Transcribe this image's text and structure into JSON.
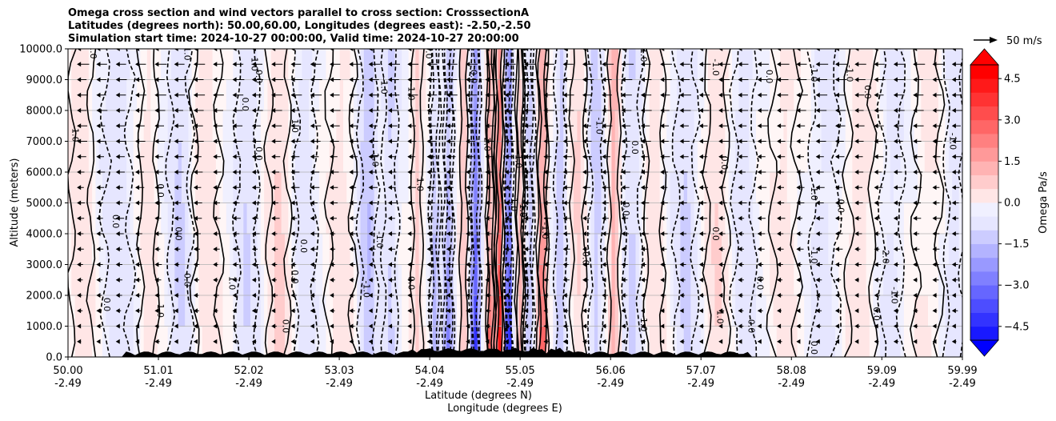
{
  "title_lines": [
    "Omega cross section and wind vectors parallel to cross section: CrosssectionA",
    "Latitudes (degrees north): 50.00,60.00, Longitudes (degrees east): -2.50,-2.50",
    "Simulation start time: 2024-10-27 00:00:00, Valid time: 2024-10-27 20:00:00"
  ],
  "chart_data": {
    "type": "heatmap",
    "title": "Omega cross section and wind vectors parallel to cross section: CrosssectionA",
    "xlabel_lines": [
      "Latitude (degrees N)",
      "Longitude (degrees E)"
    ],
    "ylabel": "Altitude (meters)",
    "xlim": [
      50.0,
      59.99
    ],
    "ylim": [
      0,
      10000
    ],
    "grid": "horizontal",
    "x_ticks": [
      {
        "lat": "50.00",
        "lon": "-2.49",
        "value": 50.0
      },
      {
        "lat": "51.01",
        "lon": "-2.49",
        "value": 51.01
      },
      {
        "lat": "52.02",
        "lon": "-2.49",
        "value": 52.02
      },
      {
        "lat": "53.03",
        "lon": "-2.49",
        "value": 53.03
      },
      {
        "lat": "54.04",
        "lon": "-2.49",
        "value": 54.04
      },
      {
        "lat": "55.05",
        "lon": "-2.49",
        "value": 55.05
      },
      {
        "lat": "56.06",
        "lon": "-2.49",
        "value": 56.06
      },
      {
        "lat": "57.07",
        "lon": "-2.49",
        "value": 57.07
      },
      {
        "lat": "58.08",
        "lon": "-2.49",
        "value": 58.08
      },
      {
        "lat": "59.09",
        "lon": "-2.49",
        "value": 59.09
      },
      {
        "lat": "59.99",
        "lon": "-2.49",
        "value": 59.99
      }
    ],
    "y_ticks": [
      {
        "label": "0.0",
        "value": 0
      },
      {
        "label": "1000.0",
        "value": 1000
      },
      {
        "label": "2000.0",
        "value": 2000
      },
      {
        "label": "3000.0",
        "value": 3000
      },
      {
        "label": "4000.0",
        "value": 4000
      },
      {
        "label": "5000.0",
        "value": 5000
      },
      {
        "label": "6000.0",
        "value": 6000
      },
      {
        "label": "7000.0",
        "value": 7000
      },
      {
        "label": "8000.0",
        "value": 8000
      },
      {
        "label": "9000.0",
        "value": 9000
      },
      {
        "label": "10000.0",
        "value": 10000
      }
    ],
    "colorbar": {
      "label": "Omega Pa/s",
      "min": -5.0,
      "max": 5.0,
      "step": 0.5,
      "extend": "both",
      "ticks": [
        {
          "label": "4.5",
          "value": 4.5
        },
        {
          "label": "3.0",
          "value": 3.0
        },
        {
          "label": "1.5",
          "value": 1.5
        },
        {
          "label": "0.0",
          "value": 0.0
        },
        {
          "label": "−1.5",
          "value": -1.5
        },
        {
          "label": "−3.0",
          "value": -3.0
        },
        {
          "label": "−4.5",
          "value": -4.5
        }
      ]
    },
    "vector_key": {
      "label": "50 m/s",
      "speed": 50
    },
    "features": [
      {
        "lat": 50.15,
        "omega": 0.6,
        "width": 0.12
      },
      {
        "lat": 50.55,
        "omega": -0.6,
        "width": 0.15
      },
      {
        "lat": 50.9,
        "omega": 0.4,
        "width": 0.1
      },
      {
        "lat": 51.25,
        "omega": -0.8,
        "width": 0.12
      },
      {
        "lat": 51.55,
        "omega": 0.5,
        "width": 0.15
      },
      {
        "lat": 52.0,
        "omega": -0.7,
        "width": 0.12
      },
      {
        "lat": 52.35,
        "omega": 0.8,
        "width": 0.12
      },
      {
        "lat": 52.65,
        "omega": -0.5,
        "width": 0.12
      },
      {
        "lat": 53.05,
        "omega": 0.4,
        "width": 0.15
      },
      {
        "lat": 53.35,
        "omega": -1.2,
        "width": 0.1
      },
      {
        "lat": 53.6,
        "omega": -0.8,
        "width": 0.08
      },
      {
        "lat": 53.9,
        "omega": 0.9,
        "width": 0.06
      },
      {
        "lat": 54.1,
        "omega": -1.8,
        "width": 0.05
      },
      {
        "lat": 54.25,
        "omega": -2.6,
        "width": 0.05
      },
      {
        "lat": 54.42,
        "omega": 1.2,
        "width": 0.04
      },
      {
        "lat": 54.55,
        "omega": -4.5,
        "width": 0.05
      },
      {
        "lat": 54.72,
        "omega": 3.2,
        "width": 0.04
      },
      {
        "lat": 54.82,
        "omega": 4.8,
        "width": 0.04
      },
      {
        "lat": 54.92,
        "omega": -4.8,
        "width": 0.04
      },
      {
        "lat": 55.05,
        "omega": 2.0,
        "width": 0.04
      },
      {
        "lat": 55.15,
        "omega": -1.6,
        "width": 0.05
      },
      {
        "lat": 55.3,
        "omega": 3.5,
        "width": 0.05
      },
      {
        "lat": 55.5,
        "omega": -1.0,
        "width": 0.06
      },
      {
        "lat": 55.7,
        "omega": 0.8,
        "width": 0.08
      },
      {
        "lat": 55.9,
        "omega": -0.9,
        "width": 0.08
      },
      {
        "lat": 56.1,
        "omega": 1.5,
        "width": 0.06
      },
      {
        "lat": 56.3,
        "omega": -0.8,
        "width": 0.1
      },
      {
        "lat": 56.55,
        "omega": 0.6,
        "width": 0.1
      },
      {
        "lat": 56.9,
        "omega": -0.8,
        "width": 0.12
      },
      {
        "lat": 57.25,
        "omega": 0.7,
        "width": 0.12
      },
      {
        "lat": 57.55,
        "omega": -0.5,
        "width": 0.12
      },
      {
        "lat": 58.0,
        "omega": 0.4,
        "width": 0.15
      },
      {
        "lat": 58.45,
        "omega": -0.4,
        "width": 0.15
      },
      {
        "lat": 58.85,
        "omega": 0.5,
        "width": 0.15
      },
      {
        "lat": 59.2,
        "omega": -0.4,
        "width": 0.12
      },
      {
        "lat": 59.6,
        "omega": 0.3,
        "width": 0.15
      },
      {
        "lat": 59.9,
        "omega": -0.5,
        "width": 0.1
      }
    ],
    "contour_labels": [
      {
        "text": "1.0",
        "lat": 50.25,
        "alt": 9900
      },
      {
        "text": "-1.0",
        "lat": 51.3,
        "alt": 9900
      },
      {
        "text": "1.0",
        "lat": 52.05,
        "alt": 9500
      },
      {
        "text": "0.0",
        "lat": 52.1,
        "alt": 9100
      },
      {
        "text": "0.0",
        "lat": 54.0,
        "alt": 9900
      },
      {
        "text": "-1.0",
        "lat": 53.5,
        "alt": 8800
      },
      {
        "text": "-1.0",
        "lat": 53.8,
        "alt": 8600
      },
      {
        "text": "0.0",
        "lat": 54.5,
        "alt": 9100
      },
      {
        "text": "1.0",
        "lat": 56.4,
        "alt": 9800
      },
      {
        "text": "-1.0",
        "lat": 57.2,
        "alt": 9400
      },
      {
        "text": "0.0",
        "lat": 57.8,
        "alt": 9100
      },
      {
        "text": "-1.0",
        "lat": 58.3,
        "alt": 9200
      },
      {
        "text": "-1.0",
        "lat": 58.7,
        "alt": 9200
      },
      {
        "text": "0.0",
        "lat": 58.9,
        "alt": 8600
      },
      {
        "text": "1.0",
        "lat": 50.05,
        "alt": 7200
      },
      {
        "text": "0.0",
        "lat": 51.95,
        "alt": 8200
      },
      {
        "text": "1.0",
        "lat": 52.5,
        "alt": 7500
      },
      {
        "text": "0.0",
        "lat": 52.1,
        "alt": 6600
      },
      {
        "text": "1.0",
        "lat": 53.4,
        "alt": 6400
      },
      {
        "text": "2.0",
        "lat": 54.65,
        "alt": 6900
      },
      {
        "text": "-1.0",
        "lat": 55.0,
        "alt": 6400
      },
      {
        "text": "-1.0",
        "lat": 55.9,
        "alt": 7500
      },
      {
        "text": "0.0",
        "lat": 56.3,
        "alt": 6800
      },
      {
        "text": "0.0",
        "lat": 57.3,
        "alt": 6300
      },
      {
        "text": "-1.0",
        "lat": 59.85,
        "alt": 7000
      },
      {
        "text": "0.0",
        "lat": 51.0,
        "alt": 5400
      },
      {
        "text": "1.0",
        "lat": 53.9,
        "alt": 5600
      },
      {
        "text": "-1.0",
        "lat": 54.95,
        "alt": 5000
      },
      {
        "text": "-1.0",
        "lat": 55.05,
        "alt": 4800
      },
      {
        "text": "0.0",
        "lat": 56.2,
        "alt": 4800
      },
      {
        "text": "1.0",
        "lat": 58.3,
        "alt": 5300
      },
      {
        "text": "0.0",
        "lat": 58.6,
        "alt": 4900
      },
      {
        "text": "0.0",
        "lat": 50.5,
        "alt": 4400
      },
      {
        "text": "0.0",
        "lat": 51.2,
        "alt": 4000
      },
      {
        "text": "0.0",
        "lat": 52.6,
        "alt": 3600
      },
      {
        "text": "-1.0",
        "lat": 53.45,
        "alt": 3800
      },
      {
        "text": "-1.0",
        "lat": 55.3,
        "alt": 4100
      },
      {
        "text": "0.0",
        "lat": 55.75,
        "alt": 3200
      },
      {
        "text": "0.0",
        "lat": 57.2,
        "alt": 4000
      },
      {
        "text": "-1.0",
        "lat": 58.3,
        "alt": 3300
      },
      {
        "text": "-2.0",
        "lat": 59.1,
        "alt": 3300
      },
      {
        "text": "0.0",
        "lat": 51.3,
        "alt": 2500
      },
      {
        "text": "1.0",
        "lat": 51.8,
        "alt": 2400
      },
      {
        "text": "0.0",
        "lat": 52.5,
        "alt": 2600
      },
      {
        "text": "-1.0",
        "lat": 53.3,
        "alt": 2200
      },
      {
        "text": "0.0",
        "lat": 53.8,
        "alt": 2400
      },
      {
        "text": "0.0",
        "lat": 57.7,
        "alt": 2400
      },
      {
        "text": "-1.0",
        "lat": 59.2,
        "alt": 2000
      },
      {
        "text": "1.0",
        "lat": 51.0,
        "alt": 1500
      },
      {
        "text": "0.0",
        "lat": 52.4,
        "alt": 1000
      },
      {
        "text": "-1.0",
        "lat": 56.4,
        "alt": 1100
      },
      {
        "text": "1.0",
        "lat": 57.25,
        "alt": 1300
      },
      {
        "text": "0.0",
        "lat": 59.0,
        "alt": 1400
      },
      {
        "text": "0.0",
        "lat": 50.4,
        "alt": 1700
      },
      {
        "text": "0.0",
        "lat": 57.6,
        "alt": 1000
      },
      {
        "text": "0.0",
        "lat": 58.3,
        "alt": 300
      }
    ]
  }
}
